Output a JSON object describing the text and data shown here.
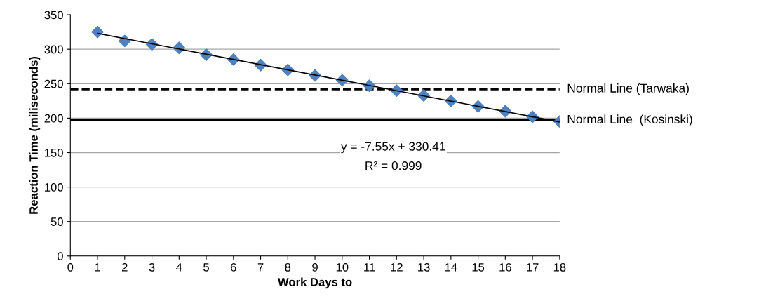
{
  "chart_data": {
    "type": "scatter",
    "xlabel": "Work Days to",
    "ylabel": "Reaction Time (miliseconds)",
    "x": [
      1,
      2,
      3,
      4,
      5,
      6,
      7,
      8,
      9,
      10,
      11,
      12,
      13,
      14,
      15,
      16,
      17,
      18
    ],
    "series": [
      {
        "color": "#4f81bd",
        "marker": "diamond",
        "values": [
          325,
          312,
          307,
          302,
          292,
          285,
          277,
          270,
          262,
          255,
          247,
          240,
          233,
          225,
          217,
          210,
          202,
          195
        ]
      },
      {
        "type": "line",
        "color": "#000000",
        "marker": "none",
        "line_style": "solid",
        "x": [
          1,
          18
        ],
        "values": [
          323,
          194.5
        ]
      }
    ],
    "ref_lines": [
      {
        "axis": "y",
        "value": 242,
        "label": "Normal Line (Tarwaka)",
        "color": "#000000",
        "line_style": "dashed"
      },
      {
        "axis": "y",
        "value": 197,
        "label": "Normal Line  (Kosinski)",
        "color": "#000000",
        "line_style": "solid"
      }
    ],
    "annotations": [
      "y = -7.55x + 330.41",
      "R² = 0.999"
    ],
    "xlim": [
      0,
      18
    ],
    "xticks": [
      0,
      1,
      2,
      3,
      4,
      5,
      6,
      7,
      8,
      9,
      10,
      11,
      12,
      13,
      14,
      15,
      16,
      17,
      18
    ],
    "ylim": [
      0,
      350
    ],
    "yticks": [
      0,
      50,
      100,
      150,
      200,
      250,
      300,
      350
    ],
    "grid": "y"
  }
}
